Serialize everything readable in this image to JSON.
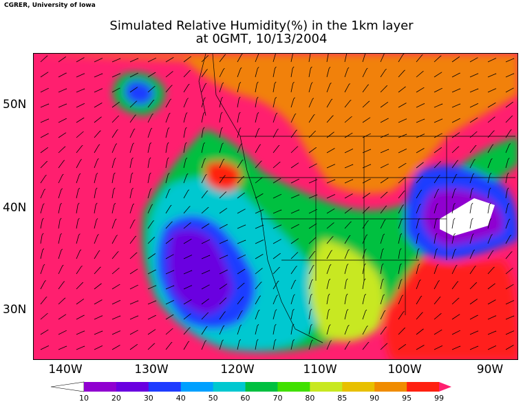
{
  "header": {
    "credit": "CGRER, University of Iowa",
    "title_line1": "Simulated Relative Humidity(%) in the 1km layer",
    "title_line2": "at 0GMT, 10/13/2004"
  },
  "map": {
    "lat_labels": [
      "50N",
      "40N",
      "30N"
    ],
    "lon_labels": [
      "140W",
      "130W",
      "120W",
      "110W",
      "100W",
      "90W"
    ],
    "background_color": "#ff1f6f"
  },
  "colorbar": {
    "levels": [
      "10",
      "20",
      "30",
      "40",
      "50",
      "60",
      "70",
      "80",
      "85",
      "90",
      "95",
      "99"
    ],
    "colors": [
      "#ffffff",
      "#9000d0",
      "#6a00e0",
      "#1e3cff",
      "#00a0ff",
      "#00c8d0",
      "#00c040",
      "#40e000",
      "#c8e820",
      "#e8c000",
      "#f08c00",
      "#ff2010",
      "#ff1f6f"
    ]
  }
}
